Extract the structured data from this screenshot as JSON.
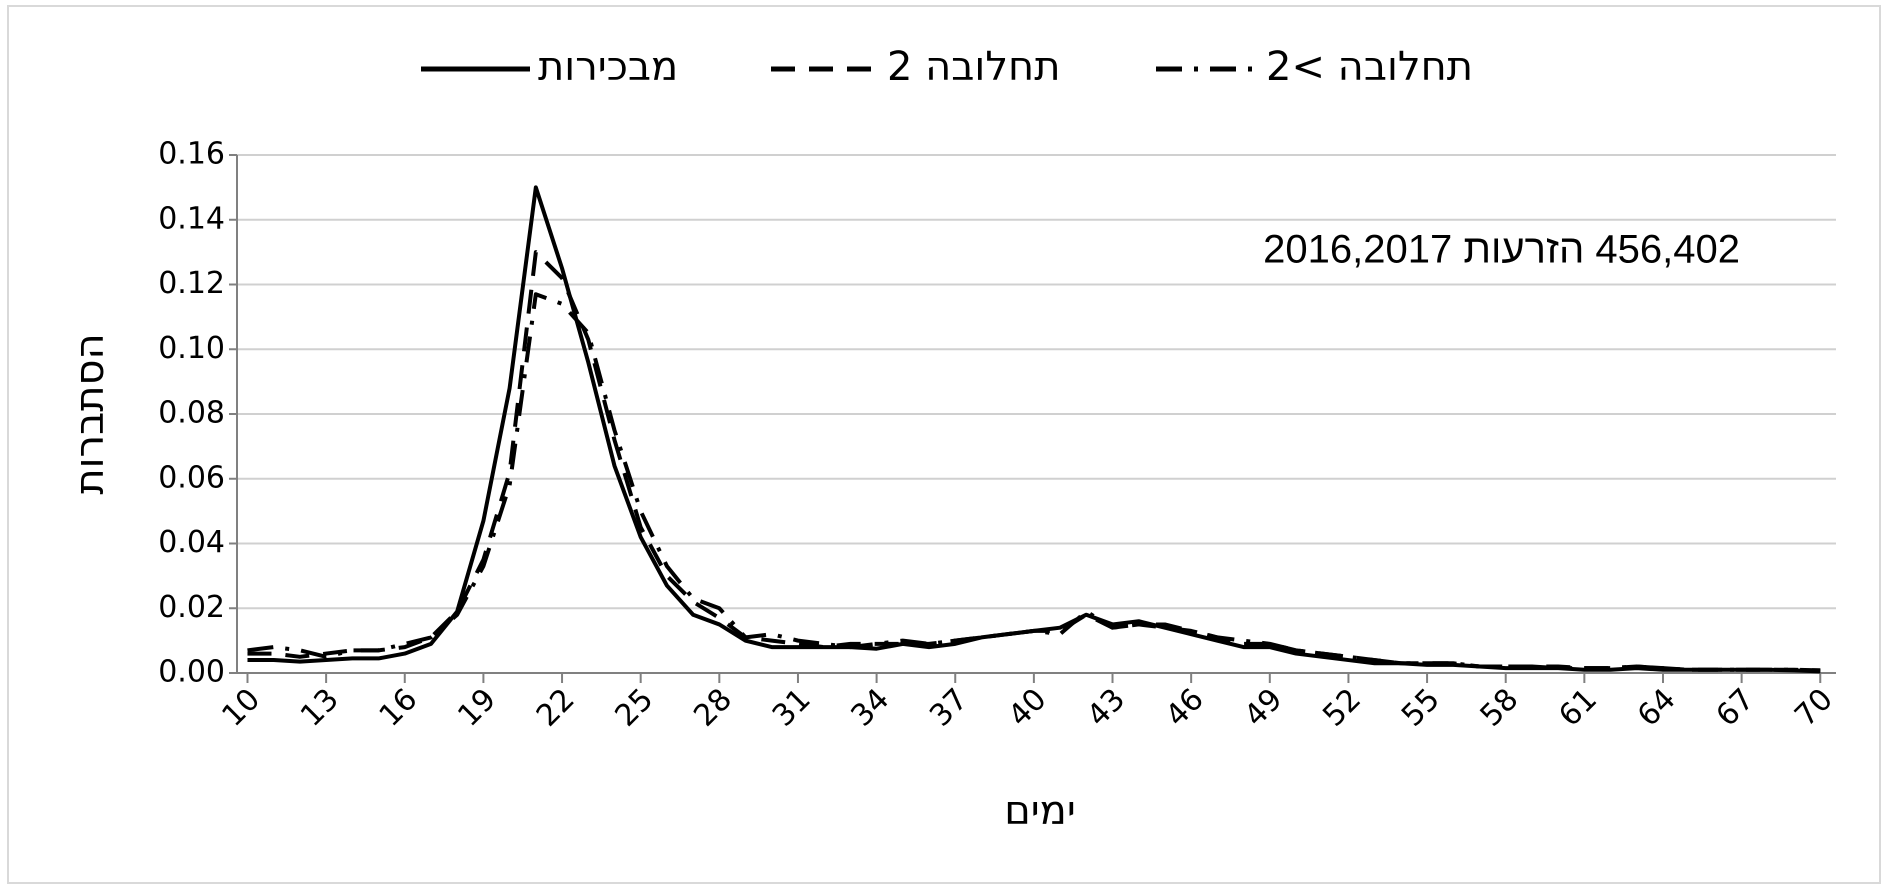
{
  "chart_data": {
    "type": "line",
    "series": [
      {
        "name": "מבכירות",
        "color": "#000000",
        "dash": "solid",
        "values": [
          0.004,
          0.004,
          0.0035,
          0.004,
          0.0045,
          0.0045,
          0.006,
          0.009,
          0.019,
          0.047,
          0.088,
          0.15,
          0.125,
          0.096,
          0.064,
          0.042,
          0.027,
          0.018,
          0.015,
          0.01,
          0.008,
          0.008,
          0.008,
          0.008,
          0.0075,
          0.009,
          0.008,
          0.009,
          0.011,
          0.012,
          0.013,
          0.014,
          0.018,
          0.015,
          0.016,
          0.014,
          0.012,
          0.01,
          0.008,
          0.008,
          0.006,
          0.005,
          0.004,
          0.003,
          0.003,
          0.0025,
          0.0025,
          0.002,
          0.0015,
          0.0015,
          0.0015,
          0.001,
          0.001,
          0.0015,
          0.001,
          0.001,
          0.001,
          0.001,
          0.001,
          0.0008,
          0.0005
        ]
      },
      {
        "name": "תחלובה 2",
        "color": "#000000",
        "dash": "dashed",
        "values": [
          0.006,
          0.006,
          0.005,
          0.006,
          0.007,
          0.007,
          0.008,
          0.011,
          0.019,
          0.035,
          0.062,
          0.13,
          0.122,
          0.103,
          0.072,
          0.045,
          0.03,
          0.022,
          0.017,
          0.011,
          0.01,
          0.009,
          0.008,
          0.009,
          0.009,
          0.009,
          0.009,
          0.01,
          0.011,
          0.012,
          0.013,
          0.013,
          0.018,
          0.014,
          0.015,
          0.014,
          0.013,
          0.011,
          0.009,
          0.009,
          0.007,
          0.006,
          0.005,
          0.004,
          0.003,
          0.003,
          0.003,
          0.002,
          0.002,
          0.002,
          0.002,
          0.0015,
          0.0015,
          0.002,
          0.0015,
          0.001,
          0.001,
          0.001,
          0.001,
          0.001,
          0.0008
        ]
      },
      {
        "name": "תחלובה >2",
        "color": "#000000",
        "dash": "dashdot",
        "values": [
          0.007,
          0.008,
          0.007,
          0.005,
          0.007,
          0.007,
          0.009,
          0.011,
          0.018,
          0.033,
          0.058,
          0.117,
          0.114,
          0.105,
          0.075,
          0.05,
          0.033,
          0.023,
          0.02,
          0.011,
          0.012,
          0.01,
          0.009,
          0.008,
          0.009,
          0.01,
          0.009,
          0.01,
          0.011,
          0.012,
          0.013,
          0.012,
          0.019,
          0.014,
          0.015,
          0.015,
          0.013,
          0.011,
          0.01,
          0.009,
          0.007,
          0.006,
          0.005,
          0.004,
          0.003,
          0.003,
          0.003,
          0.002,
          0.002,
          0.002,
          0.0015,
          0.0015,
          0.0015,
          0.002,
          0.0015,
          0.001,
          0.001,
          0.001,
          0.001,
          0.001,
          0.0008
        ]
      }
    ],
    "x": [
      10,
      11,
      12,
      13,
      14,
      15,
      16,
      17,
      18,
      19,
      20,
      21,
      22,
      23,
      24,
      25,
      26,
      27,
      28,
      29,
      30,
      31,
      32,
      33,
      34,
      35,
      36,
      37,
      38,
      39,
      40,
      41,
      42,
      43,
      44,
      45,
      46,
      47,
      48,
      49,
      50,
      51,
      52,
      53,
      54,
      55,
      56,
      57,
      58,
      59,
      60,
      61,
      62,
      63,
      64,
      65,
      66,
      67,
      68,
      69,
      70
    ],
    "xlim": [
      9.6,
      70.6
    ],
    "xticks": [
      10,
      13,
      16,
      19,
      22,
      25,
      28,
      31,
      34,
      37,
      40,
      43,
      46,
      49,
      52,
      55,
      58,
      61,
      64,
      67,
      70
    ],
    "ylim": [
      0,
      0.16
    ],
    "yticks": [
      {
        "value": 0,
        "label": "0.00"
      },
      {
        "value": 0.02,
        "label": "0.02"
      },
      {
        "value": 0.04,
        "label": "0.04"
      },
      {
        "value": 0.06,
        "label": "0.06"
      },
      {
        "value": 0.08,
        "label": "0.08"
      },
      {
        "value": 0.1,
        "label": "0.10"
      },
      {
        "value": 0.12,
        "label": "0.12"
      },
      {
        "value": 0.14,
        "label": "0.14"
      },
      {
        "value": 0.16,
        "label": "0.16"
      }
    ],
    "xlabel": "ימים",
    "ylabel": "הסתברות",
    "annotation": "456,402 הזרעות 2016,2017",
    "grid": true,
    "legend": "top"
  }
}
